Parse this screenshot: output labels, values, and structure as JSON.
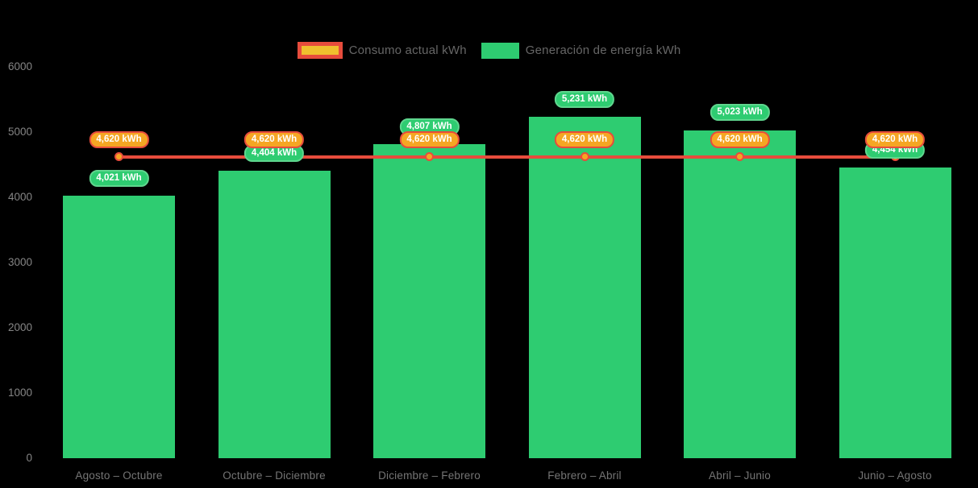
{
  "chart_data": {
    "type": "bar",
    "title": "",
    "categories": [
      "Agosto – Octubre",
      "Octubre – Diciembre",
      "Diciembre – Febrero",
      "Febrero – Abril",
      "Abril – Junio",
      "Junio – Agosto"
    ],
    "series": [
      {
        "name": "Consumo actual kWh",
        "type": "line",
        "values": [
          4620,
          4620,
          4620,
          4620,
          4620,
          4620
        ],
        "point_labels": [
          "4,620 kWh",
          "4,620 kWh",
          "4,620 kWh",
          "4,620 kWh",
          "4,620 kWh",
          "4,620 kWh"
        ],
        "line_color": "#e74c3c",
        "point_fill": "#f5a623"
      },
      {
        "name": "Generación de energía kWh",
        "type": "bar",
        "values": [
          4021,
          4404,
          4807,
          5231,
          5023,
          4454
        ],
        "point_labels": [
          "4,021 kWh",
          "4,404 kWh",
          "4,807 kWh",
          "5,231 kWh",
          "5,023 kWh",
          "4,454 kWh"
        ],
        "bar_color": "#2ecc71",
        "label_border": "#5fd68e"
      }
    ],
    "xlabel": "",
    "ylabel": "",
    "ylim": [
      0,
      6000
    ],
    "yticks": [
      "0",
      "1000",
      "2000",
      "3000",
      "4000",
      "5000",
      "6000"
    ],
    "legend_position": "top-center",
    "grid": false,
    "background_color": "#000000"
  },
  "colors": {
    "bar_green": "#2ecc71",
    "line_red": "#e74c3c",
    "point_orange": "#f5a623",
    "legend_consumo_fill": "#f0c02e",
    "axis_text": "#858585",
    "legend_text": "#666666",
    "label_text": "#ffffff"
  }
}
